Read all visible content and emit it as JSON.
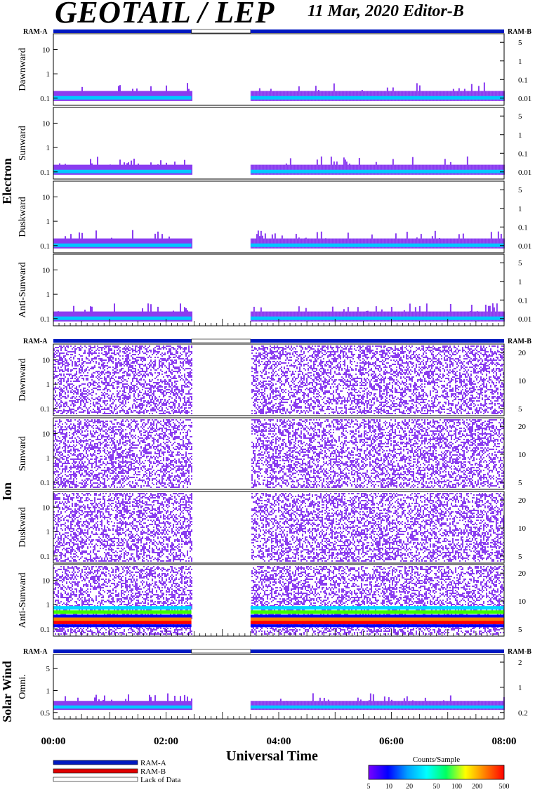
{
  "header": {
    "title": "GEOTAIL / LEP",
    "date_editor": "11 Mar, 2020   Editor-B"
  },
  "colors": {
    "ram_a": "#0018c0",
    "ram_b": "#e00000",
    "spectrogram_fill": "#8a3cf0",
    "axis": "#000000"
  },
  "chart_data": {
    "type": "heatmap",
    "xlabel": "Universal Time",
    "x_ticks": [
      "00:00",
      "02:00",
      "04:00",
      "06:00",
      "08:00"
    ],
    "xlim_hours": [
      0,
      8
    ],
    "data_gap_hours": [
      2.45,
      3.5
    ],
    "ram_labels": {
      "left": "RAM-A",
      "right": "RAM-B"
    },
    "groups": [
      {
        "name": "Electron",
        "panels": [
          {
            "label": "Dawnward",
            "left_ticks": [
              "10",
              "1",
              "0.1"
            ],
            "right_ticks": [
              "5",
              "1",
              "0.1",
              "0.01"
            ]
          },
          {
            "label": "Sunward",
            "left_ticks": [
              "10",
              "1",
              "0.1"
            ],
            "right_ticks": [
              "5",
              "1",
              "0.1",
              "0.01"
            ]
          },
          {
            "label": "Duskward",
            "left_ticks": [
              "10",
              "1",
              "0.1"
            ],
            "right_ticks": [
              "5",
              "1",
              "0.1",
              "0.01"
            ]
          },
          {
            "label": "Anti-Sunward",
            "left_ticks": [
              "10",
              "1",
              "0.1"
            ],
            "right_ticks": [
              "5",
              "1",
              "0.1",
              "0.01"
            ]
          }
        ]
      },
      {
        "name": "Ion",
        "panels": [
          {
            "label": "Dawnward",
            "left_ticks": [
              "10",
              "1",
              "0.1"
            ],
            "right_ticks": [
              "20",
              "10",
              "5"
            ]
          },
          {
            "label": "Sunward",
            "left_ticks": [
              "10",
              "1",
              "0.1"
            ],
            "right_ticks": [
              "20",
              "10",
              "5"
            ]
          },
          {
            "label": "Duskward",
            "left_ticks": [
              "10",
              "1",
              "0.1"
            ],
            "right_ticks": [
              "20",
              "10",
              "5"
            ]
          },
          {
            "label": "Anti-Sunward",
            "left_ticks": [
              "10",
              "1",
              "0.1"
            ],
            "right_ticks": [
              "20",
              "10",
              "5"
            ]
          }
        ]
      },
      {
        "name": "Solar Wind",
        "panels": [
          {
            "label": "Omni.",
            "left_ticks": [
              "5",
              "1",
              "0.5"
            ],
            "right_ticks": [
              "2",
              "1",
              "0.2"
            ]
          }
        ]
      }
    ],
    "legend": {
      "items": [
        {
          "label": "RAM-A",
          "color": "#0018c0"
        },
        {
          "label": "RAM-B",
          "color": "#e00000"
        },
        {
          "label": "Lack of Data",
          "color": "#ffffff"
        }
      ]
    },
    "colorbar": {
      "title": "Counts/Sample",
      "ticks": [
        "5",
        "10",
        "20",
        "50",
        "100",
        "200",
        "500"
      ],
      "range": [
        5,
        500
      ],
      "scale": "log",
      "colors": [
        "#7a00ff",
        "#0000ff",
        "#00a0ff",
        "#00ffff",
        "#00ff60",
        "#ffff00",
        "#ff8000",
        "#ff0000"
      ]
    }
  }
}
